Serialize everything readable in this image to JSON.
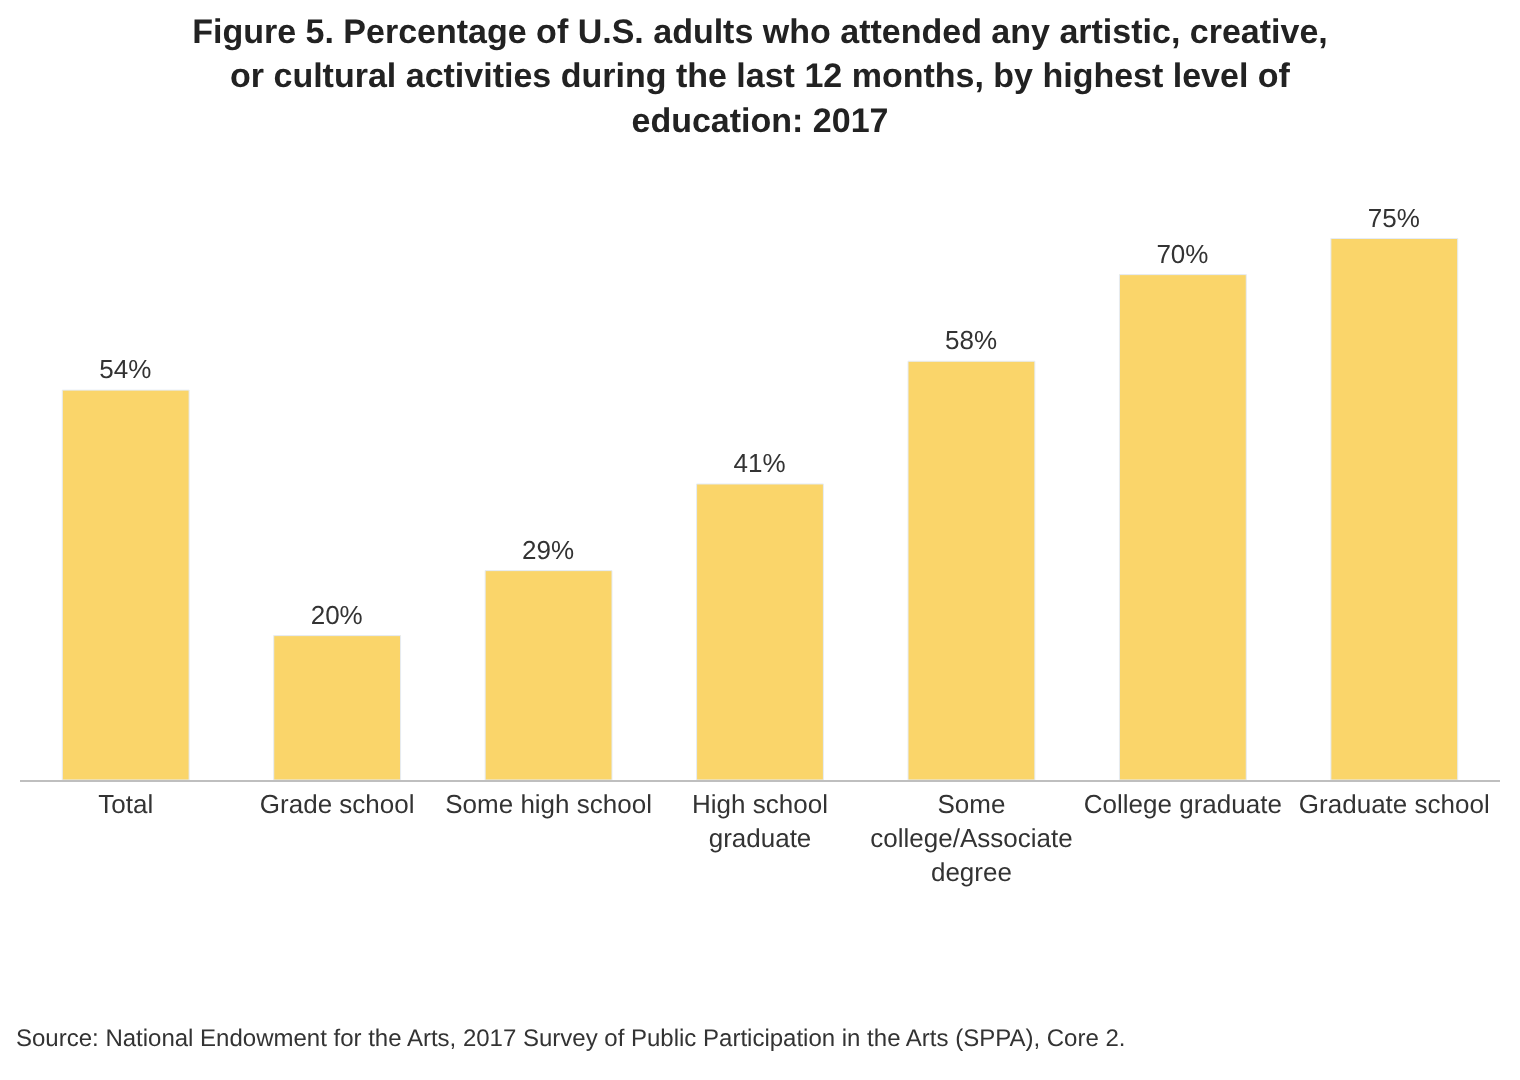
{
  "chart_data": {
    "type": "bar",
    "title": "Figure 5. Percentage of U.S. adults who attended any artistic, creative, or cultural activities during the last 12 months, by highest level of education: 2017",
    "categories": [
      "Total",
      "Grade school",
      "Some high school",
      "High school graduate",
      "Some college/Associate degree",
      "College graduate",
      "Graduate school"
    ],
    "values": [
      54,
      20,
      29,
      41,
      58,
      70,
      75
    ],
    "value_labels": [
      "54%",
      "20%",
      "29%",
      "41%",
      "58%",
      "70%",
      "75%"
    ],
    "color": "#fad56a",
    "annotations": [
      "Source: National Endowment for the Arts, 2017 Survey of Public Participation in the Arts (SPPA), Core 2."
    ]
  }
}
